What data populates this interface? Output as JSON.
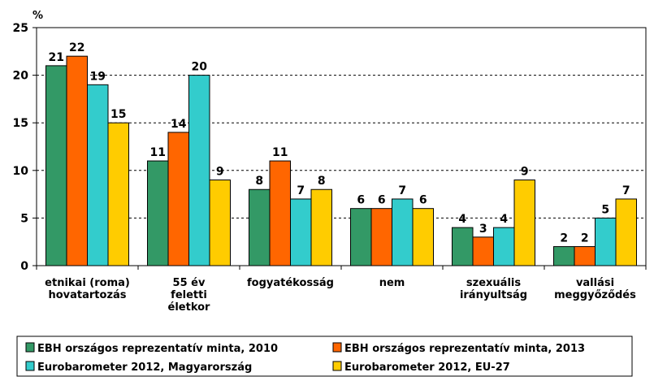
{
  "chart_data": {
    "type": "bar",
    "unit_label": "%",
    "categories": [
      [
        "etnikai (roma)",
        "hovatartozás"
      ],
      [
        "55 év",
        "feletti",
        "életkor"
      ],
      [
        "fogyatékosság"
      ],
      [
        "nem"
      ],
      [
        "szexuális",
        "irányultság"
      ],
      [
        "vallási",
        "meggyőződés"
      ]
    ],
    "series": [
      {
        "name": "EBH országos reprezentatív minta, 2010",
        "color": "#339966",
        "values": [
          21,
          11,
          8,
          6,
          4,
          2
        ]
      },
      {
        "name": "EBH országos reprezentatív minta, 2013",
        "color": "#ff6600",
        "values": [
          22,
          14,
          11,
          6,
          3,
          2
        ]
      },
      {
        "name": "Eurobarometer 2012, Magyarország",
        "color": "#33cccc",
        "values": [
          19,
          20,
          7,
          7,
          4,
          5
        ]
      },
      {
        "name": "Eurobarometer 2012, EU-27",
        "color": "#ffcc00",
        "values": [
          15,
          9,
          8,
          6,
          9,
          7
        ]
      }
    ],
    "ylim": [
      0,
      25
    ],
    "yticks": [
      0,
      5,
      10,
      15,
      20,
      25
    ],
    "grid": "horizontal-dashed",
    "legend_position": "bottom"
  }
}
